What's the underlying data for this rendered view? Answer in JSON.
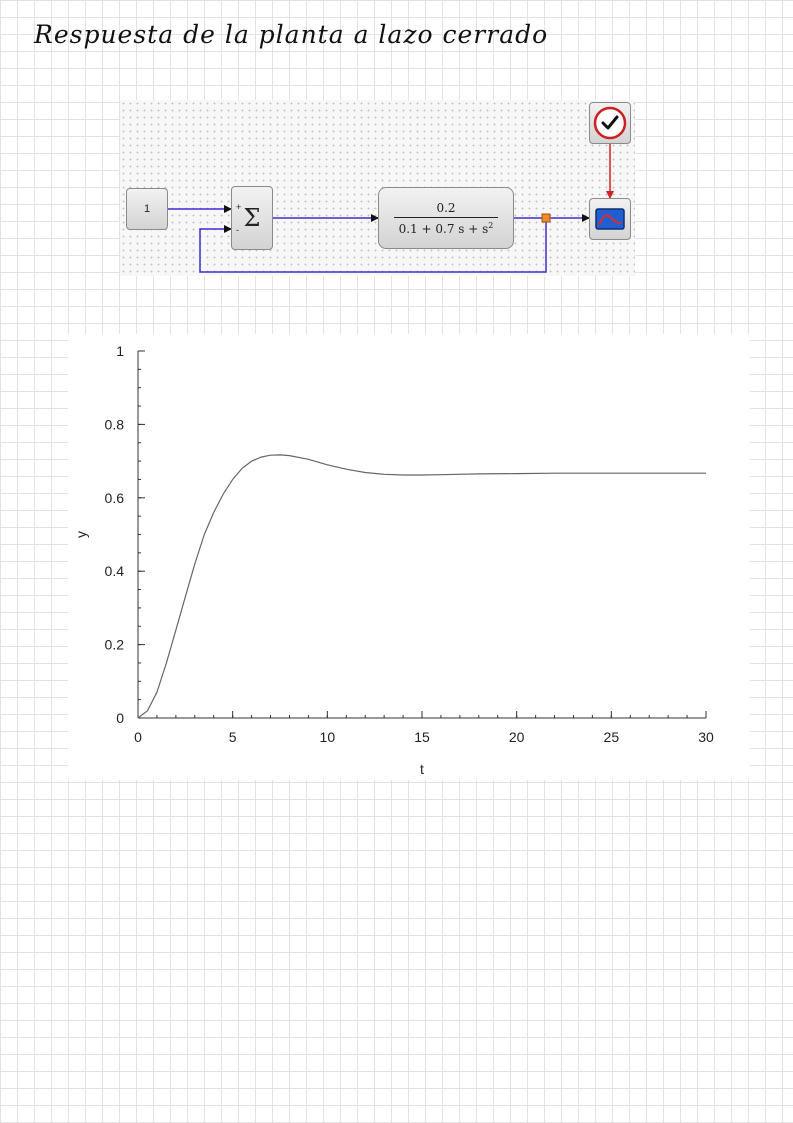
{
  "page": {
    "heading": "Respuesta de la planta a lazo cerrado"
  },
  "diagram": {
    "constant_label": "1",
    "sum_symbol": "Σ",
    "sum_plus": "+",
    "sum_minus": "-",
    "tf_numerator": "0.2",
    "tf_denominator_main": "0.1 + 0.7 s + s",
    "tf_denominator_exponent": "2",
    "icons": [
      "clock-icon",
      "scope-icon"
    ],
    "colors": {
      "signal_wire": "#3a2fd1",
      "event_wire": "#d42020",
      "split_point": "#f08a24"
    }
  },
  "chart_data": {
    "type": "line",
    "title": "",
    "xlabel": "t",
    "ylabel": "y",
    "xlim": [
      0,
      30
    ],
    "ylim": [
      0,
      1
    ],
    "xticks": [
      "0",
      "5",
      "10",
      "15",
      "20",
      "25",
      "30"
    ],
    "yticks": [
      "0",
      "0.2",
      "0.4",
      "0.6",
      "0.8",
      "1"
    ],
    "grid": false,
    "line_color": "#666666",
    "series": [
      {
        "x": [
          0,
          0.5,
          1,
          1.5,
          2,
          2.5,
          3,
          3.5,
          4,
          4.5,
          5,
          5.5,
          6,
          6.5,
          7,
          7.5,
          8,
          9,
          10,
          11,
          12,
          13,
          14,
          15,
          16,
          18,
          20,
          22,
          24,
          26,
          28,
          30
        ],
        "y": [
          0,
          0.02,
          0.07,
          0.15,
          0.24,
          0.33,
          0.42,
          0.5,
          0.56,
          0.61,
          0.65,
          0.68,
          0.7,
          0.711,
          0.716,
          0.717,
          0.715,
          0.705,
          0.69,
          0.678,
          0.669,
          0.664,
          0.662,
          0.662,
          0.663,
          0.665,
          0.666,
          0.667,
          0.667,
          0.667,
          0.667,
          0.667
        ]
      }
    ]
  }
}
